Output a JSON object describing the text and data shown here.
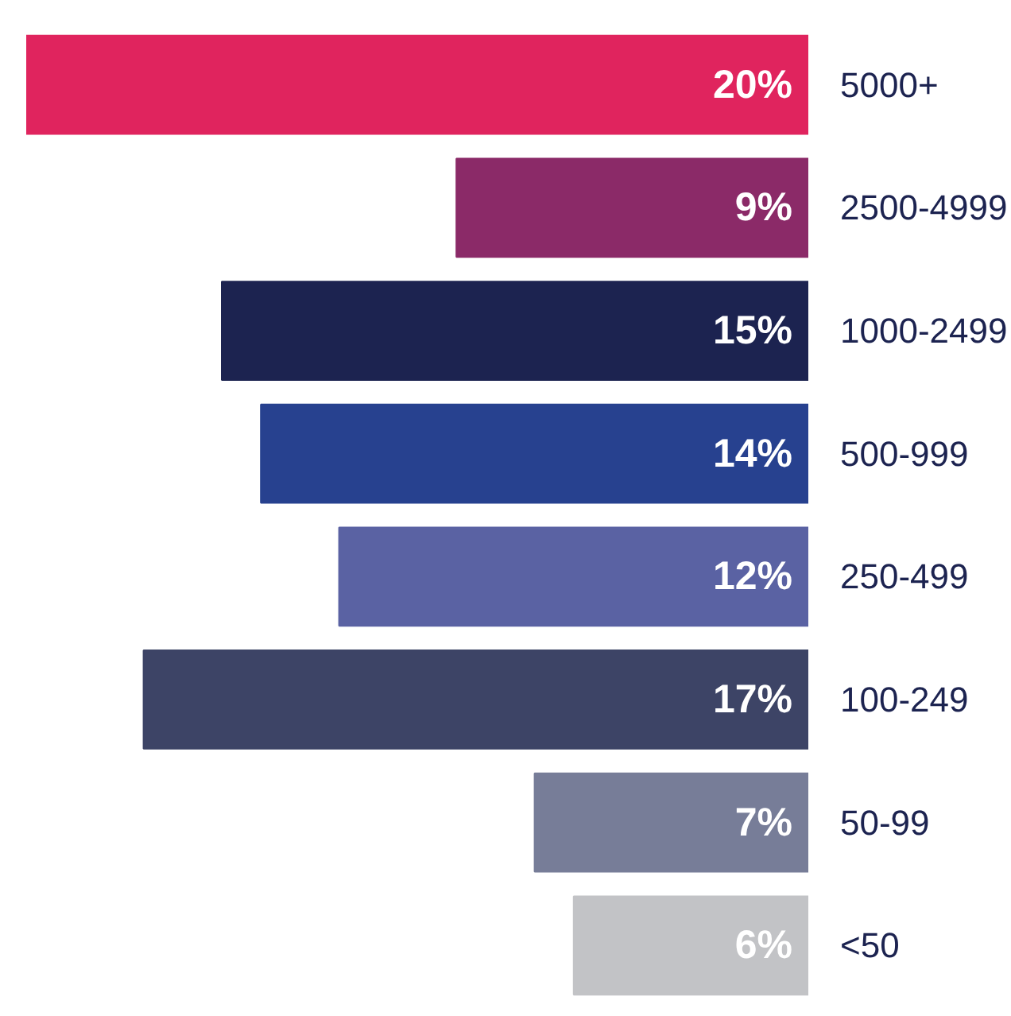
{
  "chart_data": {
    "type": "bar",
    "orientation": "horizontal",
    "categories": [
      "5000+",
      "2500-4999",
      "1000-2499",
      "500-999",
      "250-499",
      "100-249",
      "50-99",
      "<50"
    ],
    "values": [
      20,
      9,
      15,
      14,
      12,
      17,
      7,
      6
    ],
    "value_labels": [
      "20%",
      "9%",
      "15%",
      "14%",
      "12%",
      "17%",
      "7%",
      "6%"
    ],
    "colors": [
      "#e0245e",
      "#8b2a68",
      "#1c2350",
      "#27418f",
      "#5a62a3",
      "#3d4466",
      "#777d98",
      "#c2c3c6"
    ],
    "xlim": [
      20,
      0
    ],
    "tick_labels": "y"
  }
}
